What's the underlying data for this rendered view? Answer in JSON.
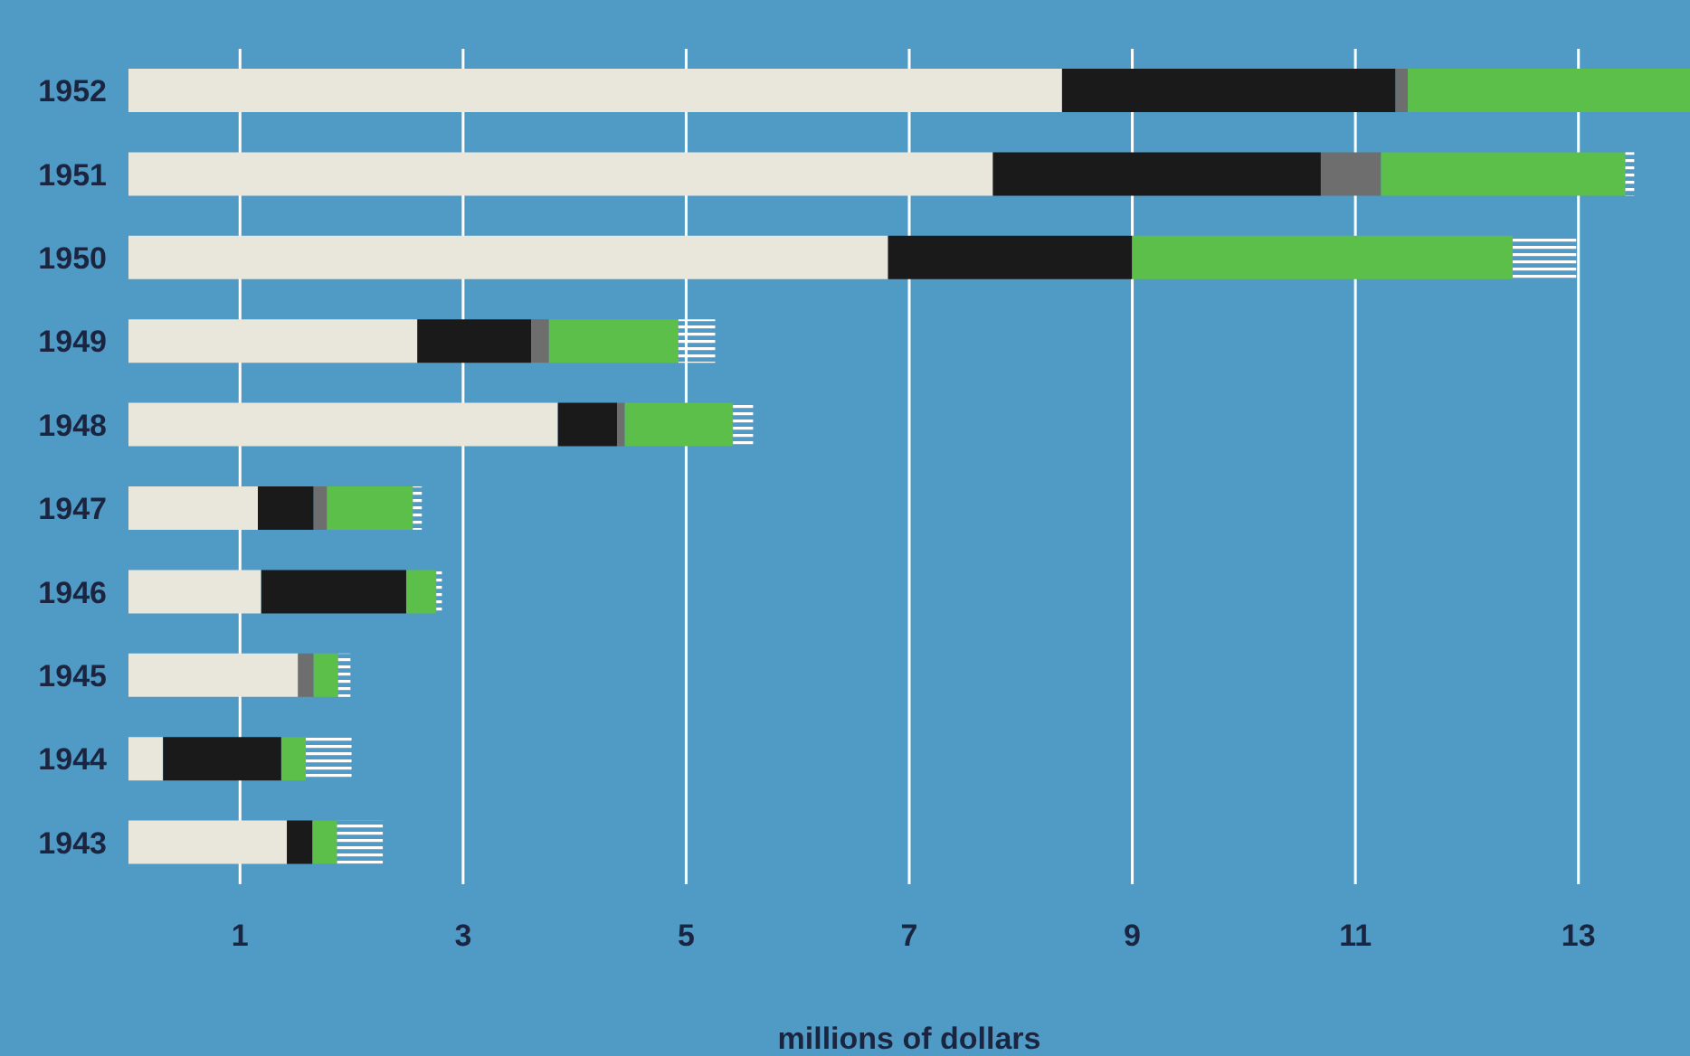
{
  "chart_data": {
    "type": "bar",
    "orientation": "horizontal",
    "stacked": true,
    "xlabel": "millions of dollars",
    "categories": [
      "1952",
      "1951",
      "1950",
      "1949",
      "1948",
      "1947",
      "1946",
      "1945",
      "1944",
      "1943"
    ],
    "series": [
      {
        "color": "#e9e6dc",
        "values": [
          8.37,
          7.75,
          6.81,
          2.59,
          3.85,
          1.16,
          1.19,
          1.52,
          0.31,
          1.42
        ]
      },
      {
        "color": "#1a1a1a",
        "values": [
          2.99,
          2.94,
          2.19,
          1.02,
          0.53,
          0.5,
          1.3,
          null,
          1.06,
          0.23
        ]
      },
      {
        "color": "#6e6e6e",
        "values": [
          0.11,
          0.54,
          null,
          0.16,
          0.07,
          0.12,
          null,
          0.14,
          null,
          null
        ]
      },
      {
        "color": "#5cbf4a",
        "values": [
          2.53,
          2.19,
          3.41,
          1.16,
          0.97,
          0.77,
          0.27,
          0.22,
          0.22,
          0.22
        ]
      },
      {
        "color": "#ffffff",
        "values": [
          null,
          0.08,
          0.57,
          0.33,
          0.18,
          0.08,
          0.05,
          0.11,
          0.41,
          0.41
        ]
      }
    ],
    "xlim": [
      0,
      14
    ],
    "xticks": [
      1,
      3,
      5,
      7,
      9,
      11,
      13
    ],
    "grid": "x"
  }
}
